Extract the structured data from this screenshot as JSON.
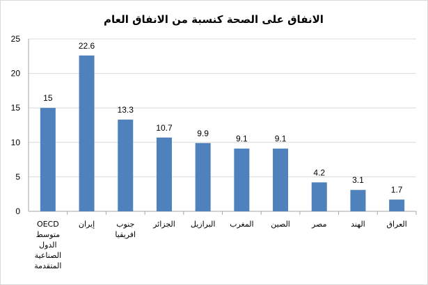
{
  "chart_data": {
    "type": "bar",
    "title": "الانفاق على الصحة كنسبة من الانفاق العام",
    "categories": [
      [
        "OECD",
        "متوسط",
        "الدول",
        "الصناعية",
        "المتقدمة"
      ],
      [
        "إيران"
      ],
      [
        "جنوب",
        "افريقيا"
      ],
      [
        "الجزائر"
      ],
      [
        "البرازيل"
      ],
      [
        "المغرب"
      ],
      [
        "الصين"
      ],
      [
        "مصر"
      ],
      [
        "الهند"
      ],
      [
        "العراق"
      ]
    ],
    "values": [
      15,
      22.6,
      13.3,
      10.7,
      9.9,
      9.1,
      9.1,
      4.2,
      3.1,
      1.7
    ],
    "value_labels": [
      "15",
      "22.6",
      "13.3",
      "10.7",
      "9.9",
      "9.1",
      "9.1",
      "4.2",
      "3.1",
      "1.7"
    ],
    "ylim": [
      0,
      25
    ],
    "yticks": [
      0,
      5,
      10,
      15,
      20,
      25
    ],
    "grid": true,
    "bar_color": "#4f81bd",
    "xlabel": "",
    "ylabel": ""
  }
}
